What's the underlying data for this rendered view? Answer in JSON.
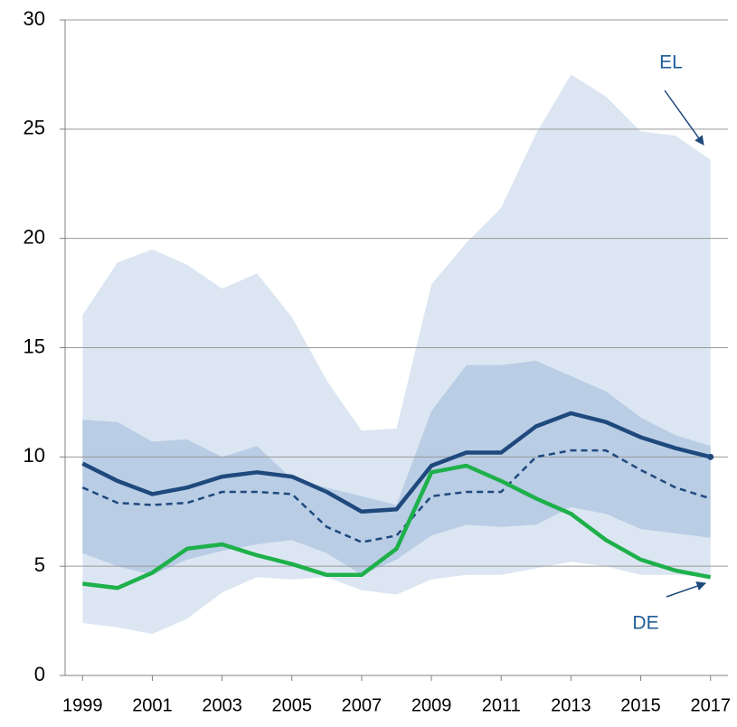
{
  "chart_data": {
    "type": "line",
    "x": [
      1999,
      2000,
      2001,
      2002,
      2003,
      2004,
      2005,
      2006,
      2007,
      2008,
      2009,
      2010,
      2011,
      2012,
      2013,
      2014,
      2015,
      2016,
      2017
    ],
    "xlim": [
      1998.5,
      2017.5
    ],
    "xticks": [
      1999,
      2001,
      2003,
      2005,
      2007,
      2009,
      2011,
      2013,
      2015,
      2017
    ],
    "ylim": [
      0,
      30
    ],
    "yticks": [
      0,
      5,
      10,
      15,
      20,
      25,
      30
    ],
    "grid": true,
    "bands": [
      {
        "color": "#dce6f2",
        "upper": [
          16.5,
          18.9,
          19.5,
          18.8,
          17.7,
          18.4,
          16.4,
          13.5,
          11.2,
          11.3,
          17.9,
          19.8,
          21.4,
          24.8,
          27.5,
          26.5,
          24.9,
          24.7,
          23.6
        ],
        "lower": [
          2.4,
          2.2,
          1.9,
          2.6,
          3.8,
          4.5,
          4.4,
          4.5,
          3.9,
          3.7,
          4.4,
          4.6,
          4.6,
          4.9,
          5.2,
          5.0,
          4.6,
          4.6,
          4.5
        ]
      },
      {
        "color": "#b9cde5",
        "upper": [
          11.7,
          11.6,
          10.7,
          10.8,
          10.0,
          10.5,
          9.0,
          8.6,
          8.2,
          7.8,
          12.1,
          14.2,
          14.2,
          14.4,
          13.7,
          13.0,
          11.8,
          11.0,
          10.5
        ],
        "lower": [
          5.6,
          5.0,
          4.6,
          5.3,
          5.7,
          6.0,
          6.2,
          5.6,
          4.6,
          5.3,
          6.4,
          6.9,
          6.8,
          6.9,
          7.7,
          7.4,
          6.7,
          6.5,
          6.3
        ]
      }
    ],
    "series": [
      {
        "color": "#1f497d",
        "dash": true,
        "values": [
          8.6,
          7.9,
          7.8,
          7.9,
          8.4,
          8.4,
          8.3,
          6.8,
          6.1,
          6.4,
          8.2,
          8.4,
          8.4,
          10.0,
          10.3,
          10.3,
          9.4,
          8.6,
          8.1
        ]
      },
      {
        "color": "#1f497d",
        "dash": false,
        "values": [
          9.7,
          8.9,
          8.3,
          8.6,
          9.1,
          9.3,
          9.1,
          8.4,
          7.5,
          7.6,
          9.6,
          10.2,
          10.2,
          11.4,
          12.0,
          11.6,
          10.9,
          10.4,
          10.0
        ]
      },
      {
        "color": "#1eb04a",
        "dash": false,
        "values": [
          4.2,
          4.0,
          4.7,
          5.8,
          6.0,
          5.5,
          5.1,
          4.6,
          4.6,
          5.8,
          9.3,
          9.6,
          8.9,
          8.1,
          7.4,
          6.2,
          5.3,
          4.8,
          4.5
        ]
      }
    ],
    "annotations": [
      {
        "text": "EL"
      },
      {
        "text": "DE"
      }
    ]
  }
}
